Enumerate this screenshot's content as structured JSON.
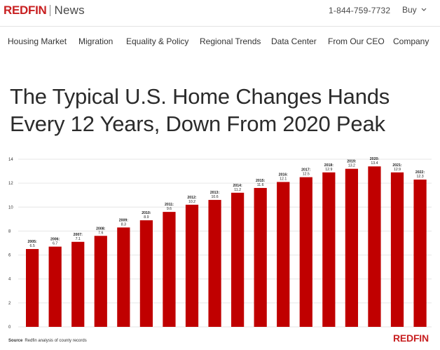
{
  "header": {
    "brand": "REDFIN",
    "section": "News",
    "phone": "1-844-759-7732",
    "buy_label": "Buy",
    "accent_color": "#c82021"
  },
  "nav": {
    "items": [
      "Housing Market",
      "Migration",
      "Equality & Policy",
      "Regional Trends",
      "Data Center",
      "From Our CEO",
      "Company"
    ]
  },
  "article": {
    "headline_line1": "The Typical U.S. Home Changes Hands",
    "headline_line2": "Every 12 Years, Down From 2020 Peak"
  },
  "chart_data": {
    "type": "bar",
    "title": "",
    "xlabel": "",
    "ylabel": "",
    "categories": [
      "2005",
      "2006",
      "2007",
      "2008",
      "2009",
      "2010",
      "2011",
      "2012",
      "2013",
      "2014",
      "2015",
      "2016",
      "2017",
      "2018",
      "2019",
      "2020",
      "2021",
      "2022"
    ],
    "data_labels": [
      "2005:",
      "2006:",
      "2007:",
      "2008:",
      "2009:",
      "2010:",
      "2011:",
      "2012:",
      "2013:",
      "2014:",
      "2015:",
      "2016:",
      "2017:",
      "2018:",
      "2019:",
      "2020:",
      "2021:",
      "2022:"
    ],
    "value_labels": [
      "6.5",
      "6.7",
      "7.1",
      "7.6",
      "8.3",
      "8.9",
      "9.6",
      "10.2",
      "10.6",
      "11.2",
      "11.6",
      "12.1",
      "12.5",
      "12.9",
      "13.2",
      "13.4",
      "12.9",
      "12.3"
    ],
    "values": [
      6.5,
      6.7,
      7.1,
      7.6,
      8.3,
      8.9,
      9.6,
      10.2,
      10.6,
      11.2,
      11.6,
      12.1,
      12.5,
      12.9,
      13.2,
      13.4,
      12.9,
      12.3
    ],
    "ylim": [
      0,
      14
    ],
    "yticks": [
      "0",
      "2",
      "4",
      "6",
      "8",
      "10",
      "12",
      "14"
    ],
    "grid": true,
    "bar_color": "#c00000",
    "source_label": "Source",
    "source_text": "Redfin analysis of county records",
    "logo": "REDFIN"
  }
}
